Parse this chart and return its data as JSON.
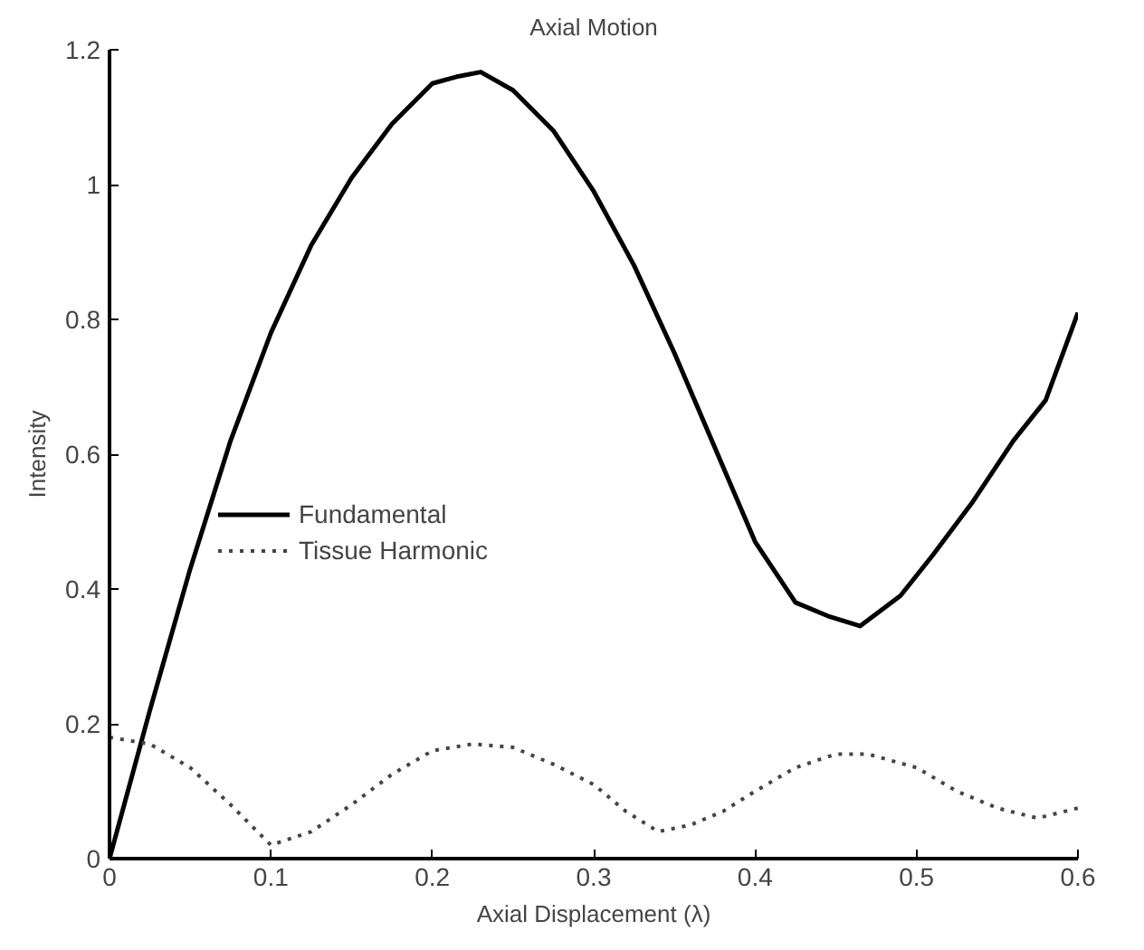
{
  "chart_data": {
    "type": "line",
    "title": "Axial Motion",
    "xlabel": "Axial Displacement (λ)",
    "ylabel": "Intensity",
    "xlim": [
      0,
      0.6
    ],
    "ylim": [
      0,
      1.2
    ],
    "xticks": [
      0,
      0.1,
      0.2,
      0.3,
      0.4,
      0.5,
      0.6
    ],
    "yticks": [
      0,
      0.2,
      0.4,
      0.6,
      0.8,
      1,
      1.2
    ],
    "grid": false,
    "legend": "left",
    "series": [
      {
        "name": "Fundamental",
        "color": "#000000",
        "line_style": "solid",
        "x": [
          0,
          0.025,
          0.05,
          0.075,
          0.1,
          0.125,
          0.15,
          0.175,
          0.2,
          0.215,
          0.23,
          0.25,
          0.275,
          0.3,
          0.325,
          0.35,
          0.375,
          0.4,
          0.425,
          0.445,
          0.465,
          0.49,
          0.51,
          0.535,
          0.56,
          0.58,
          0.6
        ],
        "values": [
          0,
          0.22,
          0.43,
          0.62,
          0.78,
          0.91,
          1.01,
          1.09,
          1.15,
          1.16,
          1.167,
          1.14,
          1.08,
          0.99,
          0.88,
          0.75,
          0.61,
          0.47,
          0.38,
          0.36,
          0.345,
          0.39,
          0.45,
          0.53,
          0.62,
          0.68,
          0.81
        ]
      },
      {
        "name": "Tissue Harmonic",
        "color": "#444444",
        "line_style": "dotted",
        "x": [
          0,
          0.025,
          0.05,
          0.075,
          0.1,
          0.125,
          0.15,
          0.175,
          0.2,
          0.225,
          0.25,
          0.275,
          0.3,
          0.32,
          0.34,
          0.36,
          0.38,
          0.4,
          0.425,
          0.45,
          0.47,
          0.5,
          0.525,
          0.55,
          0.575,
          0.6
        ],
        "values": [
          0.18,
          0.17,
          0.135,
          0.08,
          0.02,
          0.04,
          0.08,
          0.125,
          0.16,
          0.17,
          0.165,
          0.14,
          0.11,
          0.07,
          0.04,
          0.05,
          0.07,
          0.1,
          0.135,
          0.155,
          0.155,
          0.135,
          0.1,
          0.075,
          0.06,
          0.075
        ]
      }
    ]
  }
}
